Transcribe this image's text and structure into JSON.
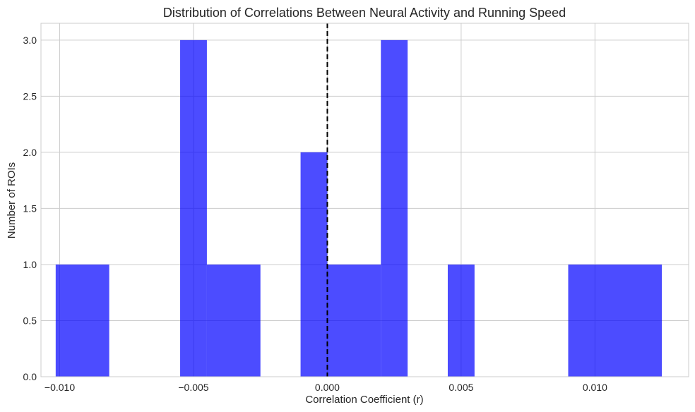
{
  "chart_data": {
    "type": "bar",
    "title": "Distribution of Correlations Between Neural Activity and Running Speed",
    "xlabel": "Correlation Coefficient (r)",
    "ylabel": "Number of ROIs",
    "xlim": [
      -0.0107,
      0.0135
    ],
    "ylim": [
      0,
      3.15
    ],
    "xticks": [
      -0.01,
      -0.005,
      0.0,
      0.005,
      0.01
    ],
    "xtick_labels": [
      "−0.010",
      "−0.005",
      "0.000",
      "0.005",
      "0.010"
    ],
    "yticks": [
      0.0,
      0.5,
      1.0,
      1.5,
      2.0,
      2.5,
      3.0
    ],
    "ytick_labels": [
      "0.0",
      "0.5",
      "1.0",
      "1.5",
      "2.0",
      "2.5",
      "3.0"
    ],
    "grid": true,
    "bar_color": "#0000ff",
    "bar_opacity": 0.7,
    "reference_line": {
      "x": 0.0,
      "color": "#000000",
      "style": "dashed"
    },
    "bins": [
      {
        "x0": -0.01015,
        "x1": -0.00815,
        "count": 1
      },
      {
        "x0": -0.00815,
        "x1": -0.00615,
        "count": 0
      },
      {
        "x0": -0.00615,
        "x1": -0.0055,
        "count": 0
      },
      {
        "x0": -0.0055,
        "x1": -0.0045,
        "count": 3
      },
      {
        "x0": -0.0045,
        "x1": -0.0025,
        "count": 1
      },
      {
        "x0": -0.0025,
        "x1": -0.001,
        "count": 0
      },
      {
        "x0": -0.001,
        "x1": 0.0,
        "count": 2
      },
      {
        "x0": 0.0,
        "x1": 0.002,
        "count": 1
      },
      {
        "x0": 0.002,
        "x1": 0.003,
        "count": 3
      },
      {
        "x0": 0.003,
        "x1": 0.0045,
        "count": 0
      },
      {
        "x0": 0.0045,
        "x1": 0.0055,
        "count": 1
      },
      {
        "x0": 0.0055,
        "x1": 0.009,
        "count": 0
      },
      {
        "x0": 0.009,
        "x1": 0.0125,
        "count": 1
      }
    ]
  }
}
